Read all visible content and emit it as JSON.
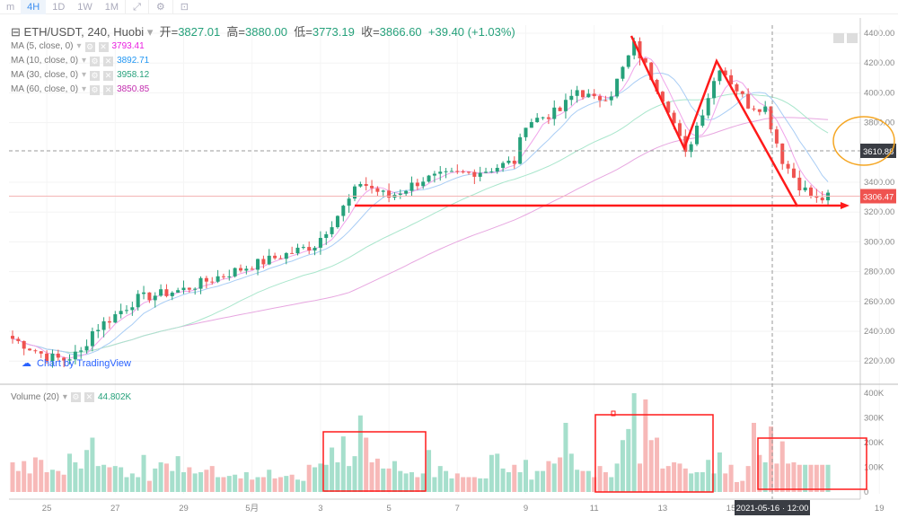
{
  "toolbar": {
    "items": [
      "m",
      "4H",
      "1D",
      "1W",
      "1M"
    ],
    "active": "4H"
  },
  "header": {
    "symbol": "ETH/USDT, 240, Huobi",
    "open_label": "开=",
    "open": "3827.01",
    "high_label": "高=",
    "high": "3880.00",
    "low_label": "低=",
    "low": "3773.19",
    "close_label": "收=",
    "close": "3866.60",
    "change": "+39.40 (+1.03%)"
  },
  "mas": [
    {
      "label": "MA (5, close, 0)",
      "value": "3793.41",
      "color": "#e91ee0"
    },
    {
      "label": "MA (10, close, 0)",
      "value": "3892.71",
      "color": "#2196f3"
    },
    {
      "label": "MA (30, close, 0)",
      "value": "3958.12",
      "color": "#26a17b"
    },
    {
      "label": "MA (60, close, 0)",
      "value": "3850.85",
      "color": "#c22dae"
    }
  ],
  "volume_legend": {
    "label": "Volume (20)",
    "value": "44.802K"
  },
  "watermark": "Chart by TradingView",
  "crosshair": {
    "price": "3610.88",
    "time": "2021-05-16 · 12:00"
  },
  "last_price": "3306.47",
  "colors": {
    "up": "#26a17b",
    "down": "#ef5350",
    "vol_up": "#a6dfcc",
    "vol_down": "#f7b9b8",
    "annotation": "#ff1a1a",
    "ellipse": "#f5a623"
  },
  "chart_data": {
    "type": "candlestick",
    "title": "ETH/USDT, 240, Huobi",
    "y_ticks": [
      "4400.00",
      "4200.00",
      "4000.00",
      "3800.00",
      "3400.00",
      "3200.00",
      "3000.00",
      "2800.00",
      "2600.00",
      "2400.00",
      "2200.00"
    ],
    "ylim": [
      2200,
      4400
    ],
    "x_ticks": [
      {
        "label": "25",
        "i": 6
      },
      {
        "label": "27",
        "i": 18
      },
      {
        "label": "29",
        "i": 30
      },
      {
        "label": "5月",
        "i": 42
      },
      {
        "label": "3",
        "i": 54
      },
      {
        "label": "5",
        "i": 66
      },
      {
        "label": "7",
        "i": 78
      },
      {
        "label": "9",
        "i": 90
      },
      {
        "label": "11",
        "i": 102
      },
      {
        "label": "13",
        "i": 114
      },
      {
        "label": "15",
        "i": 126
      },
      {
        "label": "19",
        "i": 152
      }
    ],
    "volume_ticks": [
      "400K",
      "300K",
      "200K",
      "100K",
      "0"
    ],
    "volume_ylim": [
      0,
      400
    ],
    "close_path": [
      [
        0,
        2350
      ],
      [
        6,
        2230
      ],
      [
        9,
        2210
      ],
      [
        12,
        2260
      ],
      [
        14,
        2400
      ],
      [
        22,
        2620
      ],
      [
        30,
        2680
      ],
      [
        37,
        2780
      ],
      [
        45,
        2880
      ],
      [
        53,
        2980
      ],
      [
        59,
        3280
      ],
      [
        61,
        3400
      ],
      [
        66,
        3300
      ],
      [
        72,
        3420
      ],
      [
        77,
        3450
      ],
      [
        83,
        3480
      ],
      [
        88,
        3540
      ],
      [
        90,
        3800
      ],
      [
        96,
        3880
      ],
      [
        99,
        4020
      ],
      [
        102,
        3950
      ],
      [
        105,
        4000
      ],
      [
        109,
        4320
      ],
      [
        115,
        3900
      ],
      [
        118,
        3580
      ],
      [
        124,
        4180
      ],
      [
        129,
        3920
      ],
      [
        132,
        3900
      ],
      [
        135,
        3550
      ],
      [
        138,
        3380
      ],
      [
        141,
        3280
      ],
      [
        143,
        3300
      ]
    ],
    "volume_k": [
      120,
      85,
      125,
      75,
      140,
      130,
      80,
      90,
      85,
      70,
      155,
      120,
      95,
      170,
      220,
      105,
      110,
      100,
      105,
      100,
      60,
      75,
      60,
      150,
      45,
      95,
      120,
      115,
      85,
      145,
      80,
      100,
      75,
      80,
      90,
      105,
      60,
      60,
      65,
      70,
      55,
      80,
      50,
      60,
      60,
      90,
      55,
      60,
      65,
      70,
      50,
      45,
      110,
      100,
      115,
      110,
      180,
      120,
      225,
      105,
      145,
      310,
      220,
      120,
      135,
      95,
      95,
      125,
      85,
      75,
      80,
      60,
      75,
      170,
      60,
      105,
      85,
      55,
      75,
      60,
      60,
      60,
      55,
      55,
      150,
      155,
      95,
      80,
      110,
      80,
      130,
      50,
      85,
      85,
      125,
      115,
      140,
      280,
      155,
      90,
      85,
      85,
      60,
      105,
      80,
      60,
      115,
      210,
      255,
      400,
      115,
      375,
      210,
      220,
      95,
      105,
      120,
      115,
      95,
      75,
      80,
      80,
      130,
      75,
      160,
      75,
      110,
      40,
      45,
      105,
      280,
      150,
      120,
      265,
      115,
      205,
      115,
      120,
      110,
      110,
      110,
      110,
      110,
      110
    ]
  }
}
